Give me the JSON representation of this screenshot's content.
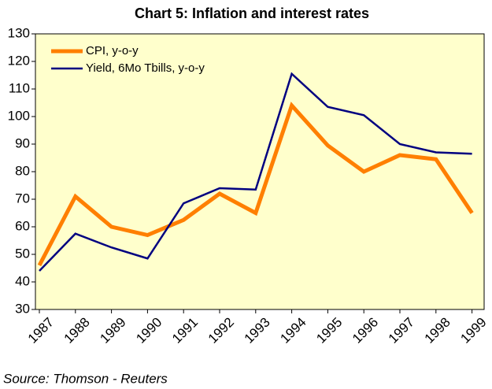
{
  "chart_data": {
    "type": "line",
    "title": "Chart 5:  Inflation and interest rates",
    "categories": [
      "1987",
      "1988",
      "1989",
      "1990",
      "1991",
      "1992",
      "1993",
      "1994",
      "1995",
      "1996",
      "1997",
      "1998",
      "1999"
    ],
    "series": [
      {
        "name": "CPI, y-o-y",
        "color": "#ff7f00",
        "values": [
          46,
          71,
          60,
          57,
          62.5,
          72,
          65,
          104,
          89.5,
          80,
          86,
          84.5,
          65
        ]
      },
      {
        "name": "Yield, 6Mo Tbills, y-o-y",
        "color": "#000080",
        "values": [
          44,
          57.5,
          52.5,
          48.5,
          68.5,
          74,
          73.5,
          115.5,
          103.5,
          100.5,
          90,
          87,
          86.5
        ]
      }
    ],
    "ylim": [
      30,
      130
    ],
    "yticks": [
      30,
      40,
      50,
      60,
      70,
      80,
      90,
      100,
      110,
      120,
      130
    ],
    "legend": "upper left",
    "background": "#ffffcc",
    "source": "Source: Thomson - Reuters"
  }
}
